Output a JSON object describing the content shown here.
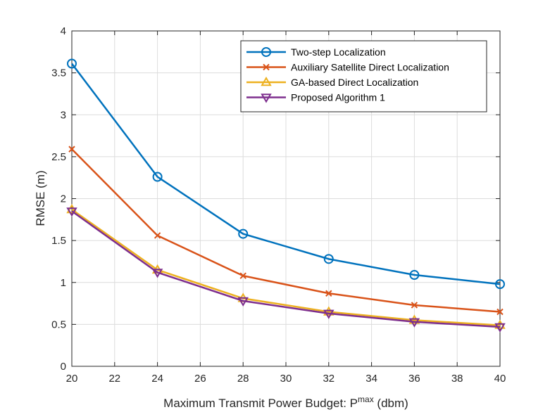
{
  "chart_data": {
    "type": "line",
    "x": [
      20,
      24,
      28,
      32,
      36,
      40
    ],
    "xlabel": "Maximum Transmit Power Budget: P",
    "xlabel_superscript": "max",
    "xlabel_suffix": " (dbm)",
    "ylabel": "RMSE (m)",
    "xlim": [
      20,
      40
    ],
    "ylim": [
      0,
      4
    ],
    "xticks": [
      20,
      22,
      24,
      26,
      28,
      30,
      32,
      34,
      36,
      38,
      40
    ],
    "yticks": [
      0,
      0.5,
      1,
      1.5,
      2,
      2.5,
      3,
      3.5,
      4
    ],
    "ytick_labels": [
      "0",
      "0.5",
      "1",
      "1.5",
      "2",
      "2.5",
      "3",
      "3.5",
      "4"
    ],
    "grid": true,
    "legend_position": "top-right",
    "series": [
      {
        "name": "Two-step Localization",
        "color": "#0072BD",
        "marker": "circle",
        "values": [
          3.61,
          2.26,
          1.58,
          1.28,
          1.09,
          0.98
        ]
      },
      {
        "name": "Auxiliary Satellite Direct Localization",
        "color": "#D95319",
        "marker": "x",
        "values": [
          2.59,
          1.56,
          1.08,
          0.87,
          0.73,
          0.65
        ]
      },
      {
        "name": "GA-based Direct Localization",
        "color": "#EDB120",
        "marker": "triangle-up",
        "values": [
          1.87,
          1.15,
          0.81,
          0.65,
          0.55,
          0.49
        ]
      },
      {
        "name": "Proposed Algorithm 1",
        "color": "#7E2F8E",
        "marker": "triangle-down",
        "values": [
          1.85,
          1.12,
          0.78,
          0.63,
          0.53,
          0.47
        ]
      }
    ]
  }
}
